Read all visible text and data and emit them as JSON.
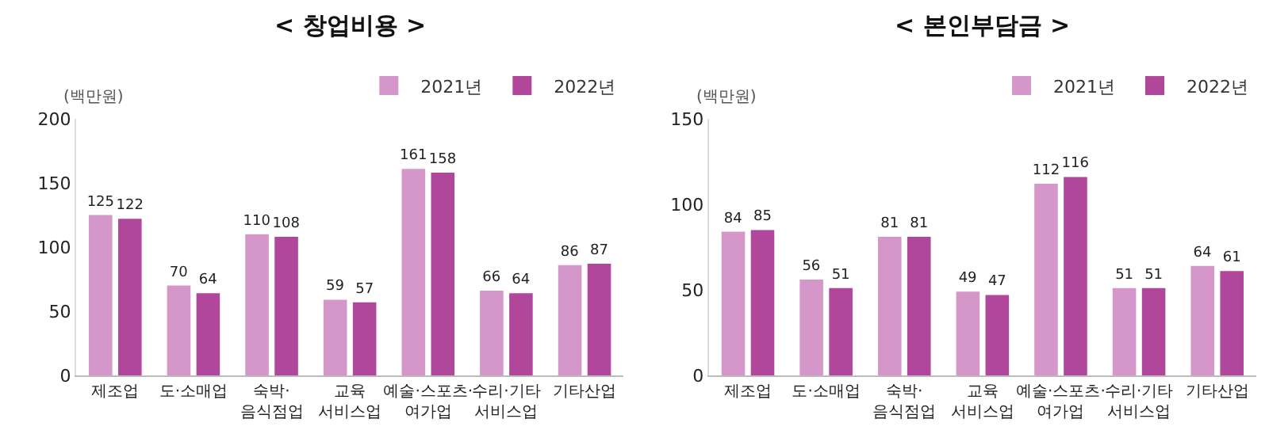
{
  "chart_data": [
    {
      "type": "bar",
      "title": "< 창업비용 >",
      "ylabel": "(백만원)",
      "categories": [
        "제조업",
        "도·소매업",
        "숙박·\n음식점업",
        "교육\n서비스업",
        "예술·스포츠·\n여가업",
        "수리·기타\n서비스업",
        "기타산업"
      ],
      "series": [
        {
          "name": "2021년",
          "color": "#d597c9",
          "values": [
            125,
            70,
            110,
            59,
            161,
            66,
            86
          ]
        },
        {
          "name": "2022년",
          "color": "#b0479a",
          "values": [
            122,
            64,
            108,
            57,
            158,
            64,
            87
          ]
        }
      ],
      "ylim": [
        0,
        200
      ],
      "yticks": [
        0,
        50,
        100,
        150,
        200
      ],
      "legend": "top right",
      "data_labels": true,
      "grid": false
    },
    {
      "type": "bar",
      "title": "< 본인부담금 >",
      "ylabel": "(백만원)",
      "categories": [
        "제조업",
        "도·소매업",
        "숙박·\n음식점업",
        "교육\n서비스업",
        "예술·스포츠·\n여가업",
        "수리·기타\n서비스업",
        "기타산업"
      ],
      "series": [
        {
          "name": "2021년",
          "color": "#d597c9",
          "values": [
            84,
            56,
            81,
            49,
            112,
            51,
            64
          ]
        },
        {
          "name": "2022년",
          "color": "#b0479a",
          "values": [
            85,
            51,
            81,
            47,
            116,
            51,
            61
          ]
        }
      ],
      "ylim": [
        0,
        150
      ],
      "yticks": [
        0,
        50,
        100,
        150
      ],
      "legend": "top right",
      "data_labels": true,
      "grid": false
    }
  ]
}
